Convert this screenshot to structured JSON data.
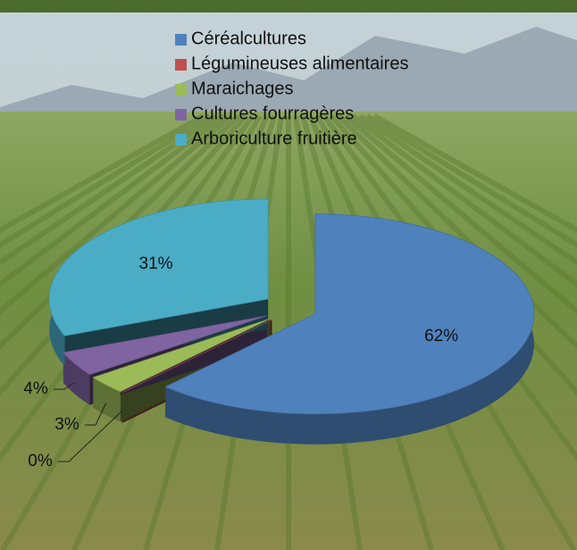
{
  "chart_data": {
    "type": "pie",
    "categories": [
      "Céréalcultures",
      "Légumineuses alimentaires",
      "Maraichages",
      "Cultures fourragères",
      "Arboriculture fruitière"
    ],
    "values": [
      62,
      0,
      3,
      4,
      31
    ],
    "value_labels": [
      "62%",
      "0%",
      "3%",
      "4%",
      "31%"
    ],
    "colors": [
      "#4f81bd",
      "#c0504d",
      "#9bbb59",
      "#8064a2",
      "#4bacc6"
    ],
    "legend": "top"
  }
}
